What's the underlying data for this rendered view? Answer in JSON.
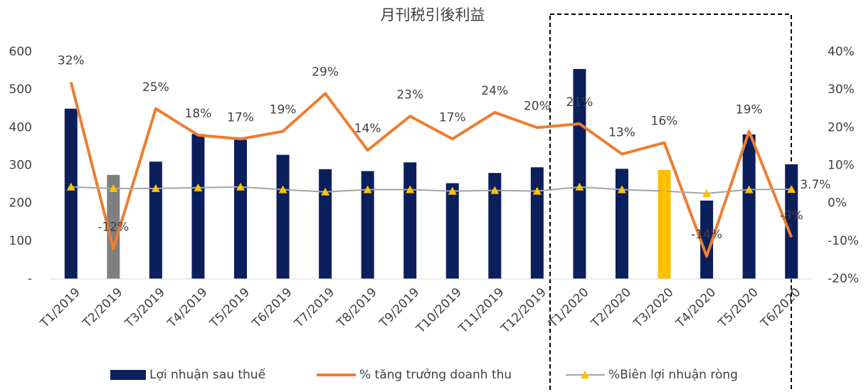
{
  "chart_data": {
    "type": "bar_line",
    "title": "月刊税引後利益",
    "categories": [
      "T1/2019",
      "T2/2019",
      "T3/2019",
      "T4/2019",
      "T5/2019",
      "T6/2019",
      "T7/2019",
      "T8/2019",
      "T9/2019",
      "T10/2019",
      "T11/2019",
      "T12/2019",
      "T1/2020",
      "T2/2020",
      "T3/2020",
      "T4/2020",
      "T5/2020",
      "T6/2020"
    ],
    "series": [
      {
        "name": "Lợi nhuận sau thuế",
        "type": "bar",
        "color": "#0b1f5c",
        "colors": [
          "#0b1f5c",
          "#7f7f7f",
          "#0b1f5c",
          "#0b1f5c",
          "#0b1f5c",
          "#0b1f5c",
          "#0b1f5c",
          "#0b1f5c",
          "#0b1f5c",
          "#0b1f5c",
          "#0b1f5c",
          "#0b1f5c",
          "#0b1f5c",
          "#0b1f5c",
          "#ffc000",
          "#0b1f5c",
          "#0b1f5c",
          "#0b1f5c"
        ],
        "values": [
          450,
          275,
          310,
          383,
          368,
          328,
          290,
          285,
          308,
          253,
          280,
          295,
          555,
          291,
          288,
          207,
          382,
          303
        ]
      },
      {
        "name": "% tăng trưởng doanh thu",
        "type": "line",
        "axis": "y2",
        "color": "#ed7d31",
        "values": [
          32,
          -12,
          25,
          18,
          17,
          19,
          29,
          14,
          23,
          17,
          24,
          20,
          21,
          13,
          16,
          -14,
          19,
          -9
        ],
        "value_labels": [
          "32%",
          "-12%",
          "25%",
          "18%",
          "17%",
          "19%",
          "29%",
          "14%",
          "23%",
          "17%",
          "24%",
          "20%",
          "21%",
          "13%",
          "16%",
          "-14%",
          "19%",
          "-9%"
        ]
      },
      {
        "name": "%Biên lợi nhuận ròng",
        "type": "line",
        "axis": "y2",
        "color": "#a5a5a5",
        "marker": "triangle",
        "marker_color": "#ffc000",
        "values": [
          4.3,
          3.9,
          3.9,
          4.1,
          4.3,
          3.6,
          3.0,
          3.6,
          3.6,
          3.2,
          3.4,
          3.2,
          4.3,
          3.6,
          3.2,
          2.6,
          3.6,
          3.7
        ],
        "value_labels": [
          null,
          null,
          null,
          null,
          null,
          null,
          null,
          null,
          null,
          null,
          null,
          null,
          null,
          null,
          null,
          null,
          null,
          "3.7%"
        ]
      }
    ],
    "ylim": [
      0,
      600
    ],
    "yticks": [
      {
        "value": 0,
        "label": "-"
      },
      100,
      200,
      300,
      400,
      500,
      600
    ],
    "y2lim": [
      -20,
      40
    ],
    "y2ticks": [
      {
        "value": -20,
        "label": "-20%"
      },
      {
        "value": -10,
        "label": "-10%"
      },
      {
        "value": 0,
        "label": "0%"
      },
      {
        "value": 10,
        "label": "10%"
      },
      {
        "value": 20,
        "label": "20%"
      },
      {
        "value": 30,
        "label": "30%"
      },
      {
        "value": 40,
        "label": "40%"
      }
    ],
    "grid": false,
    "legend": "bottom"
  }
}
